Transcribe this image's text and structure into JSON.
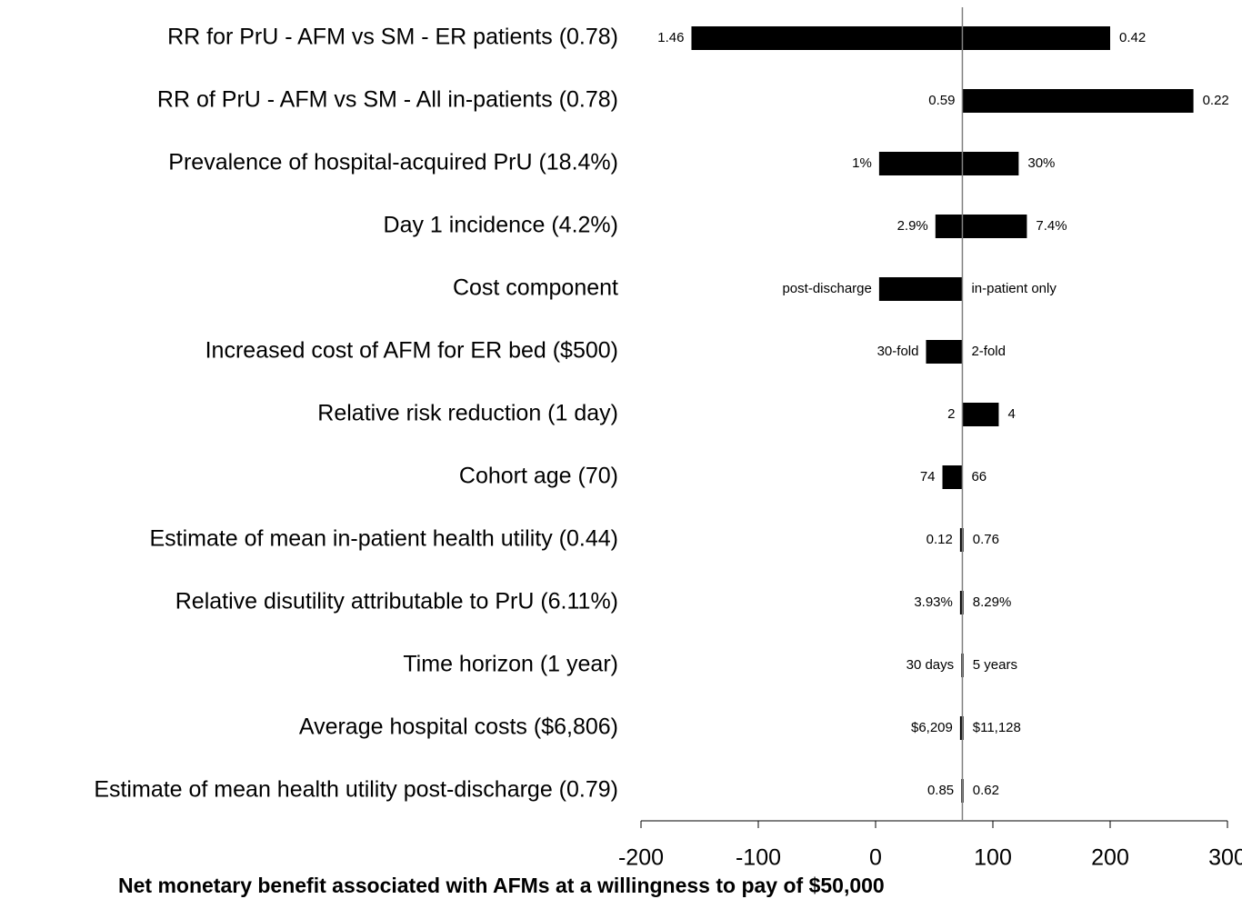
{
  "chart_data": {
    "type": "tornado",
    "categories": [
      "RR for PrU - AFM vs SM - ER patients (0.78)",
      "RR of PrU - AFM vs SM - All in-patients (0.78)",
      "Prevalence of hospital-acquired PrU (18.4%)",
      "Day 1 incidence (4.2%)",
      "Cost component",
      "Increased cost of AFM for ER bed ($500)",
      "Relative risk reduction (1 day)",
      "Cohort age (70)",
      "Estimate of mean in-patient health utility (0.44)",
      "Relative disutility attributable to PrU  (6.11%)",
      "Time horizon (1 year)",
      "Average hospital costs ($6,806)",
      "Estimate of mean health utility post-discharge (0.79)"
    ],
    "baseline": 74,
    "series": [
      {
        "color": "#000000",
        "values": [
          -157,
          74,
          3,
          51,
          3,
          43,
          74,
          57,
          72,
          72,
          73,
          72,
          73
        ],
        "value_labels": [
          "1.46",
          "0.59",
          "1%",
          "2.9%",
          "post-discharge",
          "30-fold",
          "2",
          "74",
          "0.12",
          "3.93%",
          "30 days",
          "$6,209",
          "0.85"
        ]
      },
      {
        "color": "#000000",
        "values": [
          200,
          271,
          122,
          129,
          74,
          74,
          105,
          74,
          75,
          75,
          75,
          75,
          75
        ],
        "value_labels": [
          "0.42",
          "0.22",
          "30%",
          "7.4%",
          "in-patient only",
          "2-fold",
          "4",
          "66",
          "0.76",
          "8.29%",
          "5 years",
          "$11,128",
          "0.62"
        ]
      }
    ],
    "xlim": [
      -200,
      300
    ],
    "xticks": [
      -200,
      -100,
      0,
      100,
      200,
      300
    ],
    "x_label": "Net monetary benefit associated with AFMs at a willingness to pay of $50,000"
  }
}
